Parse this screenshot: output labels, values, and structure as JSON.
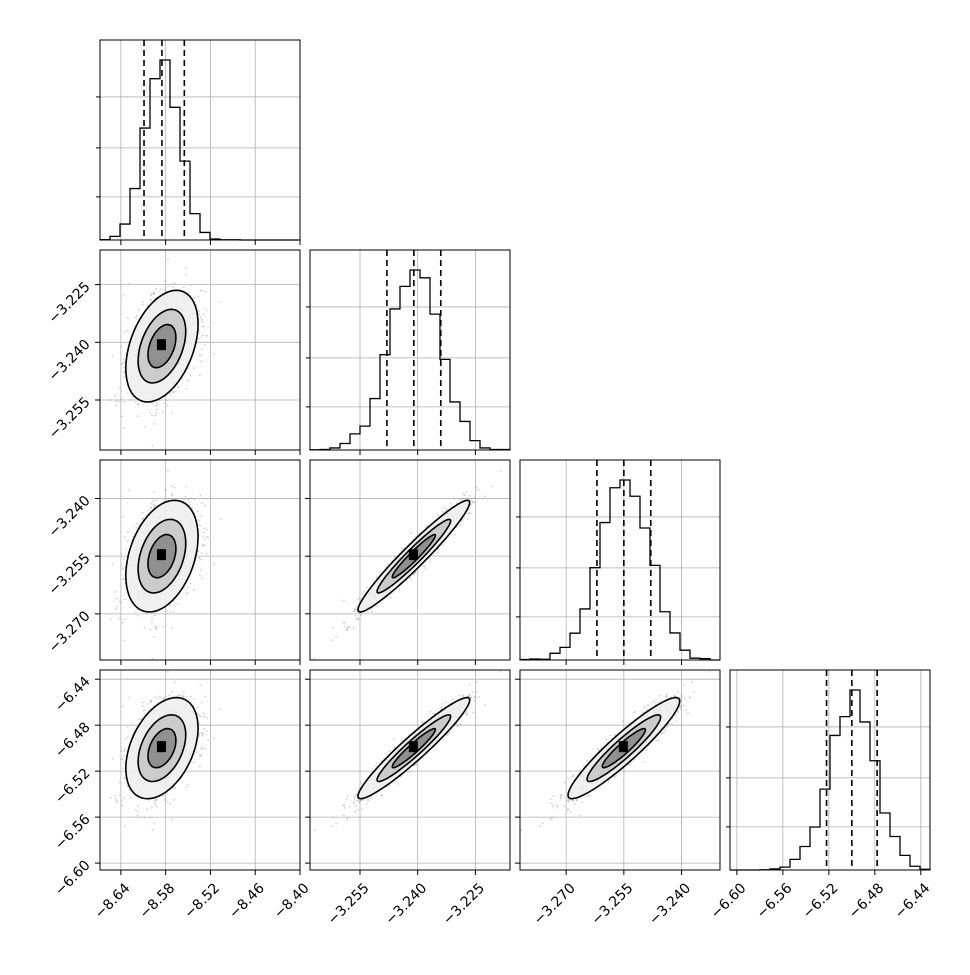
{
  "chart_data": {
    "type": "corner",
    "parameters": 4,
    "grid": true,
    "colors": {
      "line": "#000000",
      "grid": "#b0b0b0",
      "scatter": "#9a9a9a"
    },
    "tick_labels": [
      [
        "-8.64",
        "-8.58",
        "-8.52",
        "-8.46",
        "-8.40"
      ],
      [
        "-3.255",
        "-3.240",
        "-3.225"
      ],
      [
        "-3.270",
        "-3.255",
        "-3.240"
      ],
      [
        "-6.60",
        "-6.56",
        "-6.52",
        "-6.48",
        "-6.44"
      ]
    ],
    "ranges": [
      [
        -8.668,
        -8.4
      ],
      [
        -3.268,
        -3.216
      ],
      [
        -3.282,
        -3.23
      ],
      [
        -6.606,
        -6.432
      ]
    ],
    "ticks": [
      [
        -8.64,
        -8.58,
        -8.52,
        -8.46,
        -8.4
      ],
      [
        -3.255,
        -3.24,
        -3.225
      ],
      [
        -3.27,
        -3.255,
        -3.24
      ],
      [
        -6.6,
        -6.56,
        -6.52,
        -6.48,
        -6.44
      ]
    ],
    "quantiles": [
      [
        -8.609,
        -8.585,
        -8.555
      ],
      [
        -3.248,
        -3.241,
        -3.234
      ],
      [
        -3.262,
        -3.255,
        -3.248
      ],
      [
        -6.522,
        -6.5,
        -6.478
      ]
    ],
    "means": [
      -8.585,
      -3.241,
      -3.255,
      -6.5
    ],
    "sigmas": [
      0.022,
      0.0066,
      0.0066,
      0.02
    ],
    "correlations": [
      [
        1.0,
        0.4,
        0.35,
        0.4
      ],
      [
        0.4,
        1.0,
        0.96,
        0.95
      ],
      [
        0.35,
        0.96,
        1.0,
        0.93
      ],
      [
        0.4,
        0.95,
        0.93,
        1.0
      ]
    ]
  }
}
